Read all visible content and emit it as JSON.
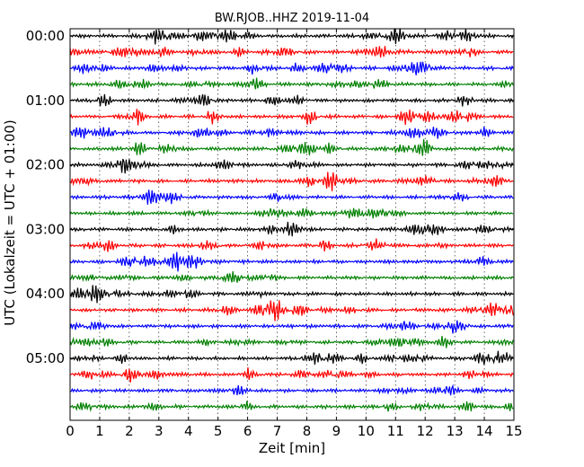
{
  "chart_data": {
    "type": "line",
    "title": "BW.RJOB..HHZ 2019-11-04",
    "xlabel": "Zeit  [min]",
    "ylabel": "UTC (Lokalzeit = UTC + 01:00)",
    "xlim": [
      0,
      15
    ],
    "x_ticks": [
      "0",
      "1",
      "2",
      "3",
      "4",
      "5",
      "6",
      "7",
      "8",
      "9",
      "10",
      "11",
      "12",
      "13",
      "14",
      "15"
    ],
    "y_tick_labels": [
      "00:00",
      "01:00",
      "02:00",
      "03:00",
      "04:00",
      "05:00"
    ],
    "rows_per_hour": 4,
    "trace_count": 24,
    "trace_colors": [
      "#000000",
      "#ff0000",
      "#0000ff",
      "#008000"
    ],
    "vertical_grid": "dotted, every 1 min"
  }
}
